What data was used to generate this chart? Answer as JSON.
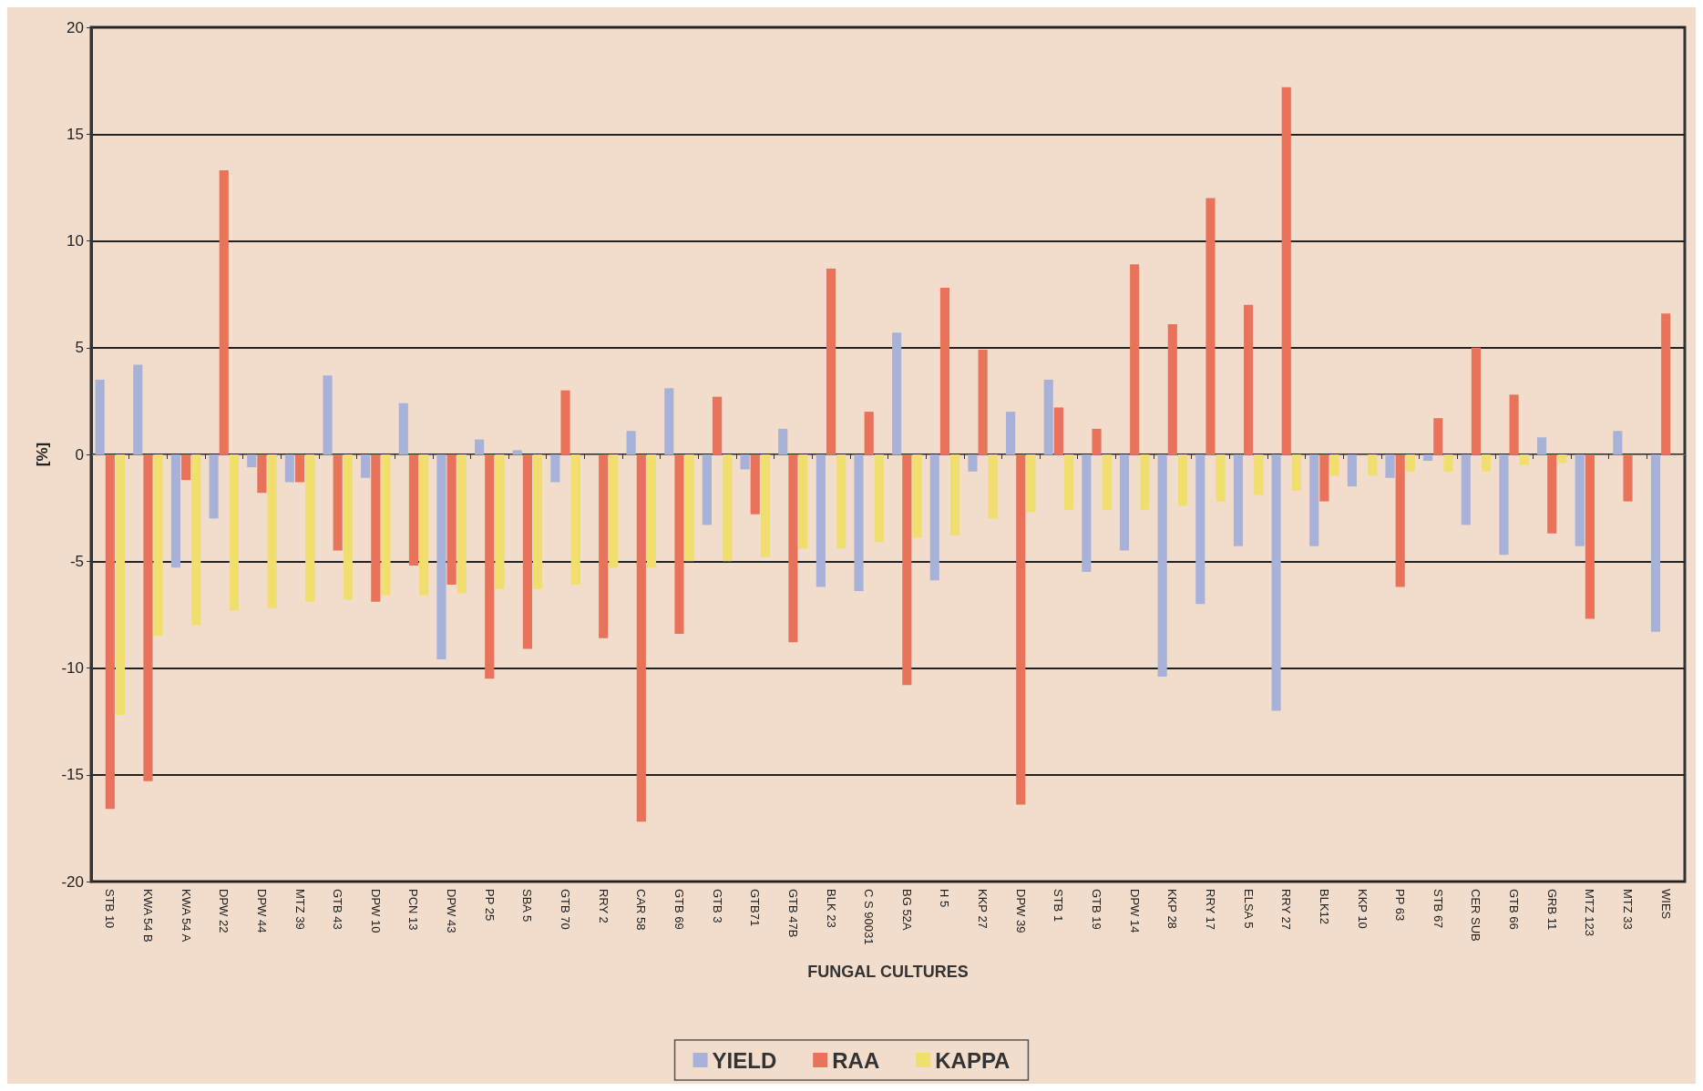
{
  "chart_data": {
    "type": "bar",
    "xlabel": "FUNGAL CULTURES",
    "ylabel": "[%]",
    "categories": [
      "STB 10",
      "KWA 54 B",
      "KWA 54 A",
      "DPW 22",
      "DPW 44",
      "MTZ 39",
      "GTB 43",
      "DPW 10",
      "PCN 13",
      "DPW 43",
      "PP 25",
      "SBA 5",
      "GTB 70",
      "RRY 2",
      "CAR 58",
      "GTB 69",
      "GTB 3",
      "GTB71",
      "GTB 47B",
      "BLK 23",
      "C S 90031",
      "BG 52A",
      "H 5",
      "KKP 27",
      "DPW 39",
      "STB 1",
      "GTB 19",
      "DPW 14",
      "KKP 28",
      "RRY 17",
      "ELSA 5",
      "RRY 27",
      "BLK12",
      "KKP 10",
      "PP 63",
      "STB 67",
      "CER SUB",
      "GTB 66",
      "GRB 11",
      "MTZ 123",
      "MTZ 33",
      "WIES"
    ],
    "series": [
      {
        "name": "YIELD",
        "color": "#a8b2d8",
        "values": [
          3.5,
          4.2,
          -5.3,
          -3.0,
          -0.6,
          -1.3,
          3.7,
          -1.1,
          2.4,
          -9.6,
          0.7,
          0.2,
          -1.3,
          0,
          1.1,
          3.1,
          -3.3,
          -0.7,
          1.2,
          -6.2,
          -6.4,
          5.7,
          -5.9,
          -0.8,
          2.0,
          3.5,
          -5.5,
          -4.5,
          -10.4,
          -7.0,
          -4.3,
          -12.0,
          -4.3,
          -1.5,
          -1.1,
          -0.3,
          -3.3,
          -4.7,
          0.8,
          -4.3,
          1.1,
          -8.3
        ]
      },
      {
        "name": "RAA",
        "color": "#e8735a",
        "values": [
          -16.6,
          -15.3,
          -1.2,
          13.3,
          -1.8,
          -1.3,
          -4.5,
          -6.9,
          -5.2,
          -6.1,
          -10.5,
          -9.1,
          3.0,
          -8.6,
          -17.2,
          -8.4,
          2.7,
          -2.8,
          -8.8,
          8.7,
          2.0,
          -10.8,
          7.8,
          4.9,
          -16.4,
          2.2,
          1.2,
          8.9,
          6.1,
          12.0,
          7.0,
          17.2,
          -2.2,
          0,
          -6.2,
          1.7,
          5.0,
          2.8,
          -3.7,
          -7.7,
          -2.2,
          6.6
        ]
      },
      {
        "name": "KAPPA",
        "color": "#f0df6e",
        "values": [
          -12.2,
          -8.5,
          -8.0,
          -7.3,
          -7.2,
          -6.9,
          -6.8,
          -6.6,
          -6.6,
          -6.5,
          -6.3,
          -6.3,
          -6.1,
          -5.3,
          -5.3,
          -5.0,
          -5.0,
          -4.8,
          -4.4,
          -4.4,
          -4.1,
          -3.9,
          -3.8,
          -3.0,
          -2.7,
          -2.6,
          -2.6,
          -2.6,
          -2.4,
          -2.2,
          -1.9,
          -1.7,
          -1.0,
          -1.0,
          -0.8,
          -0.8,
          -0.8,
          -0.5,
          -0.4,
          0,
          0,
          null
        ]
      }
    ],
    "ylim": [
      -20,
      20
    ],
    "yticks": [
      -20,
      -15,
      -10,
      -5,
      0,
      5,
      10,
      15,
      20
    ],
    "grid": "y",
    "legend": "bottom"
  }
}
